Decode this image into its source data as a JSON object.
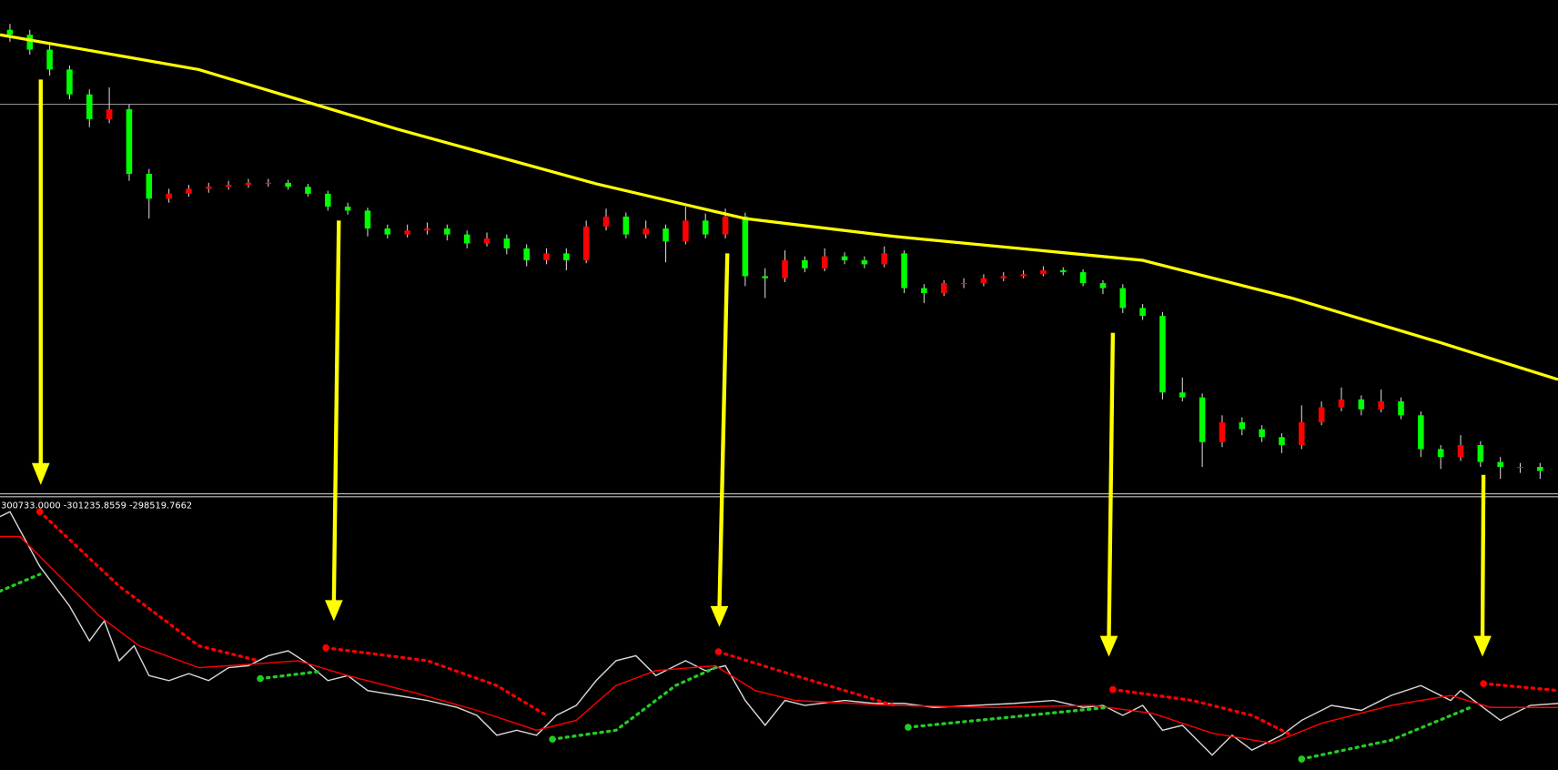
{
  "chart_data": [
    {
      "type": "candlestick",
      "xlim": [
        -0.5,
        77.9
      ],
      "ylim": [
        0,
        500
      ],
      "up_color": "#ff0000",
      "down_color": "#00ff00",
      "wick_color": "#d0d0d0",
      "candles": [
        [
          470,
          476,
          458,
          465
        ],
        [
          465,
          470,
          445,
          450
        ],
        [
          450,
          455,
          424,
          430
        ],
        [
          430,
          434,
          400,
          405
        ],
        [
          405,
          410,
          372,
          380
        ],
        [
          380,
          412,
          376,
          390
        ],
        [
          390,
          395,
          318,
          325
        ],
        [
          325,
          330,
          280,
          300
        ],
        [
          300,
          310,
          296,
          305
        ],
        [
          305,
          314,
          302,
          310
        ],
        [
          310,
          316,
          306,
          312
        ],
        [
          312,
          318,
          309,
          314
        ],
        [
          314,
          320,
          311,
          316
        ],
        [
          316,
          320,
          312,
          316
        ],
        [
          316,
          319,
          309,
          312
        ],
        [
          312,
          315,
          302,
          305
        ],
        [
          305,
          308,
          288,
          292
        ],
        [
          292,
          296,
          284,
          288
        ],
        [
          288,
          291,
          262,
          270
        ],
        [
          270,
          274,
          260,
          264
        ],
        [
          264,
          274,
          261,
          268
        ],
        [
          268,
          276,
          264,
          270
        ],
        [
          270,
          274,
          258,
          264
        ],
        [
          264,
          268,
          250,
          255
        ],
        [
          255,
          266,
          252,
          260
        ],
        [
          260,
          264,
          244,
          250
        ],
        [
          250,
          254,
          232,
          238
        ],
        [
          238,
          250,
          234,
          245
        ],
        [
          245,
          250,
          228,
          238
        ],
        [
          238,
          278,
          235,
          272
        ],
        [
          272,
          290,
          268,
          282
        ],
        [
          282,
          286,
          260,
          264
        ],
        [
          264,
          278,
          260,
          270
        ],
        [
          270,
          274,
          236,
          257
        ],
        [
          257,
          292,
          254,
          278
        ],
        [
          278,
          285,
          260,
          264
        ],
        [
          264,
          290,
          260,
          282
        ],
        [
          282,
          286,
          212,
          222
        ],
        [
          222,
          230,
          200,
          220
        ],
        [
          220,
          248,
          216,
          238
        ],
        [
          238,
          242,
          226,
          230
        ],
        [
          230,
          250,
          227,
          242
        ],
        [
          242,
          246,
          234,
          238
        ],
        [
          238,
          242,
          230,
          234
        ],
        [
          234,
          252,
          231,
          245
        ],
        [
          245,
          248,
          205,
          210
        ],
        [
          210,
          214,
          195,
          205
        ],
        [
          205,
          218,
          202,
          215
        ],
        [
          215,
          220,
          210,
          215
        ],
        [
          215,
          224,
          212,
          220
        ],
        [
          220,
          226,
          217,
          222
        ],
        [
          222,
          228,
          220,
          224
        ],
        [
          224,
          232,
          222,
          228
        ],
        [
          228,
          231,
          223,
          226
        ],
        [
          226,
          229,
          212,
          215
        ],
        [
          215,
          218,
          204,
          210
        ],
        [
          210,
          214,
          185,
          190
        ],
        [
          190,
          194,
          178,
          182
        ],
        [
          182,
          186,
          98,
          105
        ],
        [
          105,
          120,
          96,
          100
        ],
        [
          100,
          104,
          30,
          55
        ],
        [
          55,
          82,
          50,
          75
        ],
        [
          75,
          80,
          62,
          68
        ],
        [
          68,
          72,
          55,
          60
        ],
        [
          60,
          64,
          44,
          52
        ],
        [
          52,
          92,
          48,
          75
        ],
        [
          75,
          96,
          72,
          90
        ],
        [
          90,
          110,
          86,
          98
        ],
        [
          98,
          102,
          82,
          88
        ],
        [
          88,
          108,
          85,
          96
        ],
        [
          96,
          100,
          78,
          82
        ],
        [
          82,
          86,
          40,
          48
        ],
        [
          48,
          52,
          28,
          40
        ],
        [
          40,
          62,
          36,
          52
        ],
        [
          52,
          56,
          30,
          35
        ],
        [
          35,
          40,
          18,
          30
        ],
        [
          30,
          34,
          24,
          30
        ],
        [
          30,
          34,
          18,
          26
        ]
      ],
      "ma": {
        "color": "#ffff00",
        "x": [
          -0.5,
          9.5,
          19.5,
          29.5,
          37,
          44.5,
          57,
          64.5,
          72,
          77.9
        ],
        "values": [
          465,
          430,
          370,
          315,
          280,
          262,
          238,
          200,
          155,
          118
        ]
      },
      "level": 395,
      "level_color": "#a0a0a0"
    },
    {
      "type": "line",
      "label": "300733.0000 -301235.8559 -298519.7662",
      "xlim": [
        -0.5,
        77.9
      ],
      "ylim": [
        0,
        275
      ],
      "lines": [
        {
          "color": "#d8d8d8",
          "dash": false,
          "x": [
            -0.5,
            0,
            1.5,
            3,
            4,
            4.75,
            5.5,
            6.25,
            7,
            8,
            9,
            10,
            11,
            12,
            13,
            14,
            15,
            16,
            17,
            18,
            19.5,
            21,
            22.5,
            23.5,
            24.5,
            25.5,
            26.5,
            27.5,
            28.5,
            29.5,
            30.5,
            31.5,
            32.5,
            34,
            35,
            36,
            37,
            38,
            39,
            40,
            42,
            43.5,
            45,
            46.5,
            48.5,
            50.5,
            52.5,
            54,
            55,
            56,
            57,
            58,
            59,
            60.5,
            61.5,
            62.5,
            64,
            65,
            66.5,
            68,
            69.5,
            71,
            72.5,
            73,
            74,
            75,
            76.5,
            77.9
          ],
          "values": [
            255,
            260,
            205,
            165,
            130,
            150,
            110,
            125,
            95,
            90,
            97,
            90,
            103,
            105,
            115,
            120,
            107,
            90,
            95,
            80,
            75,
            70,
            63,
            55,
            35,
            40,
            35,
            55,
            65,
            90,
            110,
            115,
            95,
            110,
            100,
            105,
            70,
            45,
            70,
            65,
            70,
            67,
            67,
            63,
            65,
            67,
            70,
            63,
            65,
            55,
            65,
            40,
            45,
            15,
            35,
            20,
            35,
            50,
            65,
            60,
            75,
            85,
            70,
            80,
            65,
            50,
            65,
            67
          ]
        },
        {
          "color": "#ff0000",
          "dash": false,
          "x": [
            -0.5,
            0.5,
            2.5,
            4.5,
            6.5,
            9.5,
            12.5,
            14.5,
            17,
            20.5,
            23.5,
            26.5,
            28.5,
            30.5,
            32.5,
            35.5,
            37.5,
            39.5,
            44.5,
            49.5,
            54.5,
            57.5,
            60.5,
            63.5,
            66,
            69.5,
            72.5,
            74.5,
            77.9
          ],
          "values": [
            235,
            235,
            195,
            155,
            125,
            103,
            107,
            110,
            95,
            77,
            60,
            40,
            50,
            85,
            100,
            105,
            80,
            70,
            65,
            63,
            65,
            57,
            37,
            27,
            47,
            65,
            75,
            63,
            63
          ]
        },
        {
          "color": "#ff0000",
          "dash": true,
          "x": [
            1.5,
            5.5,
            9.5,
            12.5,
            null,
            15.9,
            21,
            24.5,
            27,
            null,
            35.65,
            39.5,
            44.5,
            null,
            55.5,
            59.5,
            62.5,
            64.5,
            null,
            74.15,
            77.9
          ],
          "values": [
            260,
            185,
            125,
            110,
            null,
            123,
            110,
            85,
            55,
            null,
            119,
            95,
            65,
            null,
            81,
            70,
            55,
            35,
            null,
            87,
            80
          ]
        },
        {
          "color": "#22cc22",
          "dash": true,
          "x": [
            -0.5,
            1.5,
            null,
            12.6,
            15.5,
            null,
            27.3,
            30.5,
            33.5,
            35.5,
            null,
            45.2,
            55.25,
            null,
            65,
            69.5,
            73.5
          ],
          "values": [
            180,
            197,
            null,
            92,
            99,
            null,
            31,
            40,
            85,
            103,
            null,
            43,
            63,
            null,
            11,
            30,
            63
          ]
        }
      ],
      "signals": [
        {
          "color": "#ff0000",
          "x": [
            1.5,
            15.9,
            35.65,
            55.5,
            74.15
          ],
          "values": [
            260,
            123,
            119,
            81,
            87
          ]
        },
        {
          "color": "#22cc22",
          "x": [
            12.6,
            27.3,
            45.2,
            65
          ],
          "values": [
            92,
            31,
            43,
            11
          ]
        }
      ]
    }
  ]
}
